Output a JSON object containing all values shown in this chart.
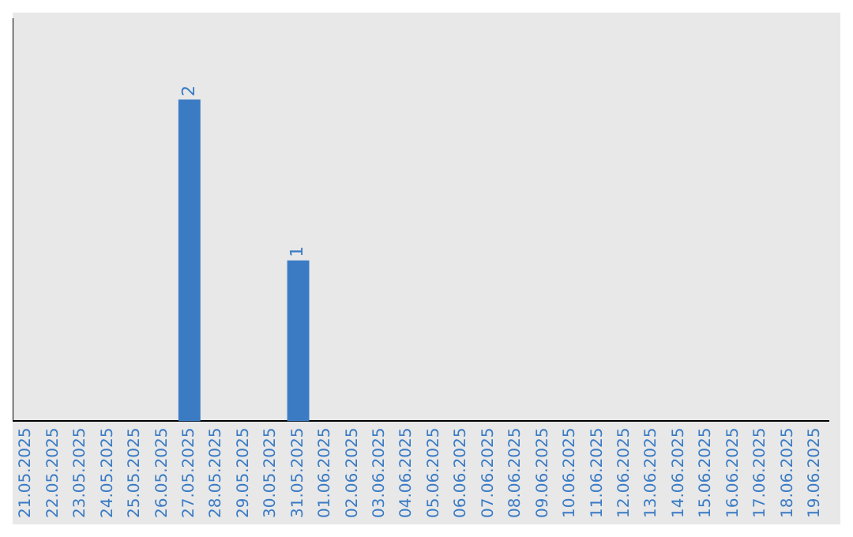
{
  "chart_data": {
    "type": "bar",
    "categories": [
      "21.05.2025",
      "22.05.2025",
      "23.05.2025",
      "24.05.2025",
      "25.05.2025",
      "26.05.2025",
      "27.05.2025",
      "28.05.2025",
      "29.05.2025",
      "30.05.2025",
      "31.05.2025",
      "01.06.2025",
      "02.06.2025",
      "03.06.2025",
      "04.06.2025",
      "05.06.2025",
      "06.06.2025",
      "07.06.2025",
      "08.06.2025",
      "09.06.2025",
      "10.06.2025",
      "11.06.2025",
      "12.06.2025",
      "13.06.2025",
      "14.06.2025",
      "15.06.2025",
      "16.06.2025",
      "17.06.2025",
      "18.06.2025",
      "19.06.2025"
    ],
    "values": [
      0,
      0,
      0,
      0,
      0,
      0,
      2,
      0,
      0,
      0,
      1,
      0,
      0,
      0,
      0,
      0,
      0,
      0,
      0,
      0,
      0,
      0,
      0,
      0,
      0,
      0,
      0,
      0,
      0,
      0
    ],
    "value_labels": [
      null,
      null,
      null,
      null,
      null,
      null,
      "2",
      null,
      null,
      null,
      "1",
      null,
      null,
      null,
      null,
      null,
      null,
      null,
      null,
      null,
      null,
      null,
      null,
      null,
      null,
      null,
      null,
      null,
      null,
      null
    ],
    "color": "#3a7bc4",
    "grid": false,
    "legend": false,
    "tick_labels": "x"
  }
}
